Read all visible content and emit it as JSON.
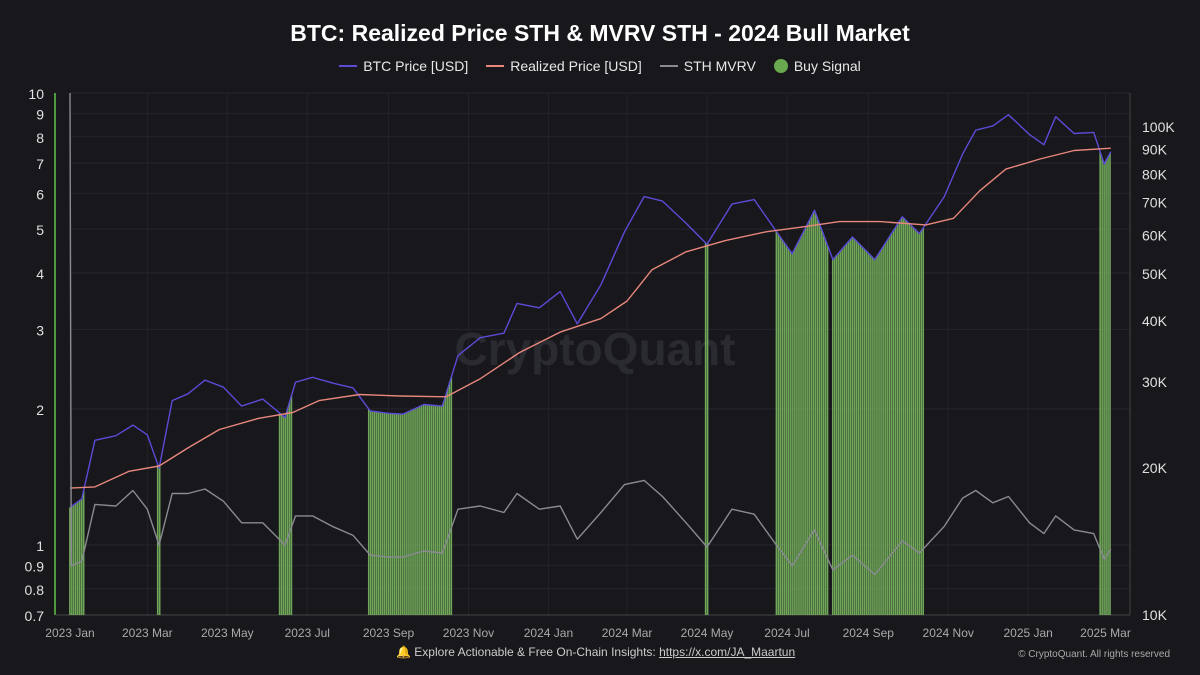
{
  "chart_data": {
    "type": "line",
    "title": "BTC: Realized Price STH & MVRV STH - 2024 Bull Market",
    "watermark": "CryptoQuant",
    "legend": {
      "placement": "top",
      "entries": [
        {
          "name": "BTC Price [USD]",
          "color": "#5b4bd6"
        },
        {
          "name": "Realized Price [USD]",
          "color": "#e8877c"
        },
        {
          "name": "STH MVRV",
          "color": "#8a8a92"
        },
        {
          "name": "Buy Signal",
          "color": "#6aa84f"
        }
      ]
    },
    "left_axis": {
      "scale": "log",
      "range": [
        0.7,
        10
      ],
      "ticks": [
        "0.7",
        "0.8",
        "0.9",
        "1",
        "2",
        "3",
        "4",
        "5",
        "6",
        "7",
        "8",
        "9",
        "10"
      ],
      "tick_values": [
        0.7,
        0.8,
        0.9,
        1,
        2,
        3,
        4,
        5,
        6,
        7,
        8,
        9,
        10
      ]
    },
    "right_axis": {
      "scale": "log",
      "range": [
        10000,
        110000
      ],
      "ticks": [
        "10K",
        "20K",
        "30K",
        "40K",
        "50K",
        "60K",
        "70K",
        "80K",
        "90K",
        "100K"
      ],
      "tick_values": [
        10000,
        20000,
        30000,
        40000,
        50000,
        60000,
        70000,
        80000,
        90000,
        100000
      ]
    },
    "x_axis": {
      "type": "date",
      "ticks": [
        "2023 Jan",
        "2023 Mar",
        "2023 May",
        "2023 Jul",
        "2023 Sep",
        "2023 Nov",
        "2024 Jan",
        "2024 Mar",
        "2024 May",
        "2024 Jul",
        "2024 Sep",
        "2024 Nov",
        "2025 Jan",
        "2025 Mar"
      ],
      "tick_dates": [
        "2023-01-01",
        "2023-03-01",
        "2023-05-01",
        "2023-07-01",
        "2023-09-01",
        "2023-11-01",
        "2024-01-01",
        "2024-03-01",
        "2024-05-01",
        "2024-07-01",
        "2024-09-01",
        "2024-11-01",
        "2025-01-01",
        "2025-03-01"
      ]
    },
    "grid": true,
    "series": [
      {
        "name": "BTC Price [USD]",
        "axis": "right",
        "points": [
          [
            "2023-01-01",
            16600
          ],
          [
            "2023-01-10",
            17300
          ],
          [
            "2023-01-20",
            22800
          ],
          [
            "2023-02-05",
            23300
          ],
          [
            "2023-02-18",
            24500
          ],
          [
            "2023-03-01",
            23400
          ],
          [
            "2023-03-10",
            20000
          ],
          [
            "2023-03-20",
            27500
          ],
          [
            "2023-04-01",
            28400
          ],
          [
            "2023-04-14",
            30300
          ],
          [
            "2023-04-28",
            29300
          ],
          [
            "2023-05-12",
            26800
          ],
          [
            "2023-05-28",
            27700
          ],
          [
            "2023-06-14",
            25400
          ],
          [
            "2023-06-22",
            30000
          ],
          [
            "2023-07-05",
            30700
          ],
          [
            "2023-07-20",
            29900
          ],
          [
            "2023-08-05",
            29200
          ],
          [
            "2023-08-18",
            26200
          ],
          [
            "2023-09-01",
            25900
          ],
          [
            "2023-09-12",
            25800
          ],
          [
            "2023-09-28",
            27000
          ],
          [
            "2023-10-12",
            26800
          ],
          [
            "2023-10-24",
            34000
          ],
          [
            "2023-11-10",
            37000
          ],
          [
            "2023-11-28",
            37800
          ],
          [
            "2023-12-08",
            43500
          ],
          [
            "2023-12-25",
            42600
          ],
          [
            "2024-01-10",
            46000
          ],
          [
            "2024-01-23",
            39500
          ],
          [
            "2024-02-10",
            47500
          ],
          [
            "2024-02-28",
            61000
          ],
          [
            "2024-03-14",
            72000
          ],
          [
            "2024-03-28",
            70500
          ],
          [
            "2024-04-15",
            63500
          ],
          [
            "2024-05-01",
            57500
          ],
          [
            "2024-05-20",
            69500
          ],
          [
            "2024-06-06",
            71000
          ],
          [
            "2024-06-24",
            60500
          ],
          [
            "2024-07-05",
            55000
          ],
          [
            "2024-07-22",
            67500
          ],
          [
            "2024-08-05",
            53500
          ],
          [
            "2024-08-20",
            59500
          ],
          [
            "2024-09-06",
            53500
          ],
          [
            "2024-09-27",
            65500
          ],
          [
            "2024-10-10",
            60500
          ],
          [
            "2024-10-29",
            72000
          ],
          [
            "2024-11-12",
            88000
          ],
          [
            "2024-11-22",
            98500
          ],
          [
            "2024-12-05",
            100500
          ],
          [
            "2024-12-17",
            106000
          ],
          [
            "2025-01-02",
            96500
          ],
          [
            "2025-01-13",
            92000
          ],
          [
            "2025-01-22",
            105000
          ],
          [
            "2025-02-05",
            97000
          ],
          [
            "2025-02-20",
            97500
          ],
          [
            "2025-02-28",
            84000
          ],
          [
            "2025-03-05",
            89000
          ]
        ]
      },
      {
        "name": "Realized Price [USD]",
        "axis": "right",
        "points": [
          [
            "2023-01-01",
            18200
          ],
          [
            "2023-01-20",
            18300
          ],
          [
            "2023-02-15",
            19700
          ],
          [
            "2023-03-10",
            20200
          ],
          [
            "2023-04-01",
            22000
          ],
          [
            "2023-04-25",
            24000
          ],
          [
            "2023-05-25",
            25300
          ],
          [
            "2023-06-20",
            26000
          ],
          [
            "2023-07-10",
            27500
          ],
          [
            "2023-08-10",
            28300
          ],
          [
            "2023-09-10",
            28100
          ],
          [
            "2023-10-15",
            28000
          ],
          [
            "2023-11-10",
            30500
          ],
          [
            "2023-12-10",
            34500
          ],
          [
            "2024-01-10",
            38000
          ],
          [
            "2024-02-10",
            40500
          ],
          [
            "2024-03-01",
            44000
          ],
          [
            "2024-03-20",
            51000
          ],
          [
            "2024-04-15",
            55500
          ],
          [
            "2024-05-15",
            58500
          ],
          [
            "2024-06-15",
            61000
          ],
          [
            "2024-07-15",
            62500
          ],
          [
            "2024-08-10",
            64000
          ],
          [
            "2024-09-10",
            64000
          ],
          [
            "2024-10-15",
            63000
          ],
          [
            "2024-11-05",
            65000
          ],
          [
            "2024-11-25",
            74000
          ],
          [
            "2024-12-15",
            82000
          ],
          [
            "2025-01-10",
            86000
          ],
          [
            "2025-02-05",
            89500
          ],
          [
            "2025-03-05",
            90500
          ]
        ]
      },
      {
        "name": "STH MVRV",
        "axis": "left",
        "points": [
          [
            "2023-01-01",
            10
          ],
          [
            "2023-01-02",
            0.9
          ],
          [
            "2023-01-10",
            0.92
          ],
          [
            "2023-01-20",
            1.23
          ],
          [
            "2023-02-05",
            1.22
          ],
          [
            "2023-02-18",
            1.32
          ],
          [
            "2023-03-01",
            1.2
          ],
          [
            "2023-03-10",
            1.0
          ],
          [
            "2023-03-20",
            1.3
          ],
          [
            "2023-04-01",
            1.3
          ],
          [
            "2023-04-14",
            1.33
          ],
          [
            "2023-04-28",
            1.25
          ],
          [
            "2023-05-12",
            1.12
          ],
          [
            "2023-05-28",
            1.12
          ],
          [
            "2023-06-14",
            1.0
          ],
          [
            "2023-06-22",
            1.16
          ],
          [
            "2023-07-05",
            1.16
          ],
          [
            "2023-07-20",
            1.1
          ],
          [
            "2023-08-05",
            1.05
          ],
          [
            "2023-08-18",
            0.95
          ],
          [
            "2023-09-01",
            0.94
          ],
          [
            "2023-09-12",
            0.94
          ],
          [
            "2023-09-28",
            0.97
          ],
          [
            "2023-10-12",
            0.96
          ],
          [
            "2023-10-24",
            1.2
          ],
          [
            "2023-11-10",
            1.22
          ],
          [
            "2023-11-28",
            1.18
          ],
          [
            "2023-12-08",
            1.3
          ],
          [
            "2023-12-25",
            1.2
          ],
          [
            "2024-01-10",
            1.22
          ],
          [
            "2024-01-23",
            1.03
          ],
          [
            "2024-02-10",
            1.18
          ],
          [
            "2024-02-28",
            1.36
          ],
          [
            "2024-03-14",
            1.39
          ],
          [
            "2024-03-28",
            1.28
          ],
          [
            "2024-04-15",
            1.12
          ],
          [
            "2024-05-01",
            0.99
          ],
          [
            "2024-05-20",
            1.2
          ],
          [
            "2024-06-06",
            1.17
          ],
          [
            "2024-06-24",
            0.99
          ],
          [
            "2024-07-05",
            0.9
          ],
          [
            "2024-07-22",
            1.08
          ],
          [
            "2024-08-05",
            0.88
          ],
          [
            "2024-08-20",
            0.95
          ],
          [
            "2024-09-06",
            0.86
          ],
          [
            "2024-09-27",
            1.02
          ],
          [
            "2024-10-10",
            0.96
          ],
          [
            "2024-10-29",
            1.1
          ],
          [
            "2024-11-12",
            1.27
          ],
          [
            "2024-11-22",
            1.32
          ],
          [
            "2024-12-05",
            1.24
          ],
          [
            "2024-12-17",
            1.28
          ],
          [
            "2025-01-02",
            1.12
          ],
          [
            "2025-01-13",
            1.06
          ],
          [
            "2025-01-22",
            1.16
          ],
          [
            "2025-02-05",
            1.08
          ],
          [
            "2025-02-20",
            1.06
          ],
          [
            "2025-02-28",
            0.93
          ],
          [
            "2025-03-05",
            0.98
          ]
        ]
      }
    ],
    "buy_signal_ranges": [
      [
        "2023-01-01",
        "2023-01-12"
      ],
      [
        "2023-03-09",
        "2023-03-11"
      ],
      [
        "2023-06-10",
        "2023-06-20"
      ],
      [
        "2023-08-17",
        "2023-10-19"
      ],
      [
        "2024-04-30",
        "2024-05-02"
      ],
      [
        "2024-06-23",
        "2024-08-02"
      ],
      [
        "2024-08-05",
        "2024-10-13"
      ],
      [
        "2025-02-25",
        "2025-03-05"
      ]
    ]
  },
  "footer": {
    "text": "Explore Actionable & Free On-Chain Insights: ",
    "link": "https://x.com/JA_Maartun",
    "copyright": "© CryptoQuant. All rights reserved"
  }
}
